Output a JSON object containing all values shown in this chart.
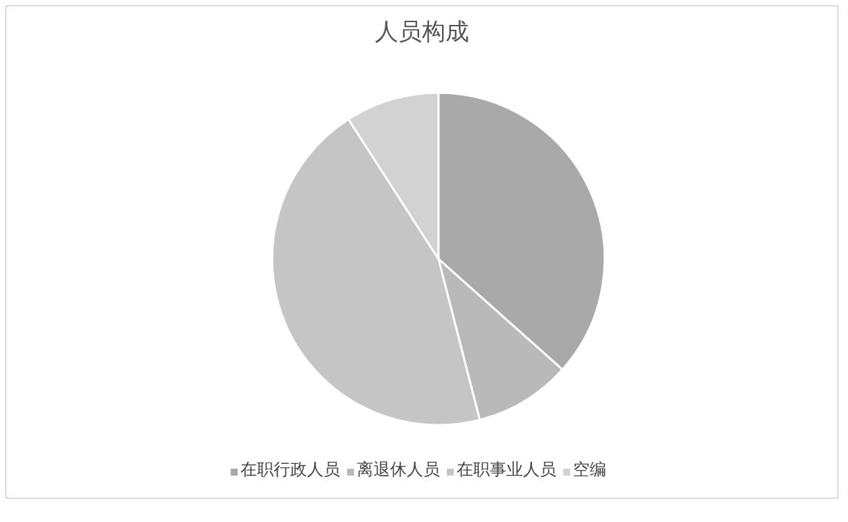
{
  "chart_data": {
    "type": "pie",
    "title": "人员构成",
    "categories": [
      "在职行政人员",
      "离退休人员",
      "在职事业人员",
      "空编"
    ],
    "values": [
      36.6,
      9.4,
      44.9,
      9.1
    ],
    "colors": [
      "#a9a9a9",
      "#b9b9b9",
      "#c5c5c5",
      "#d2d2d2"
    ],
    "legend": "bottom"
  }
}
